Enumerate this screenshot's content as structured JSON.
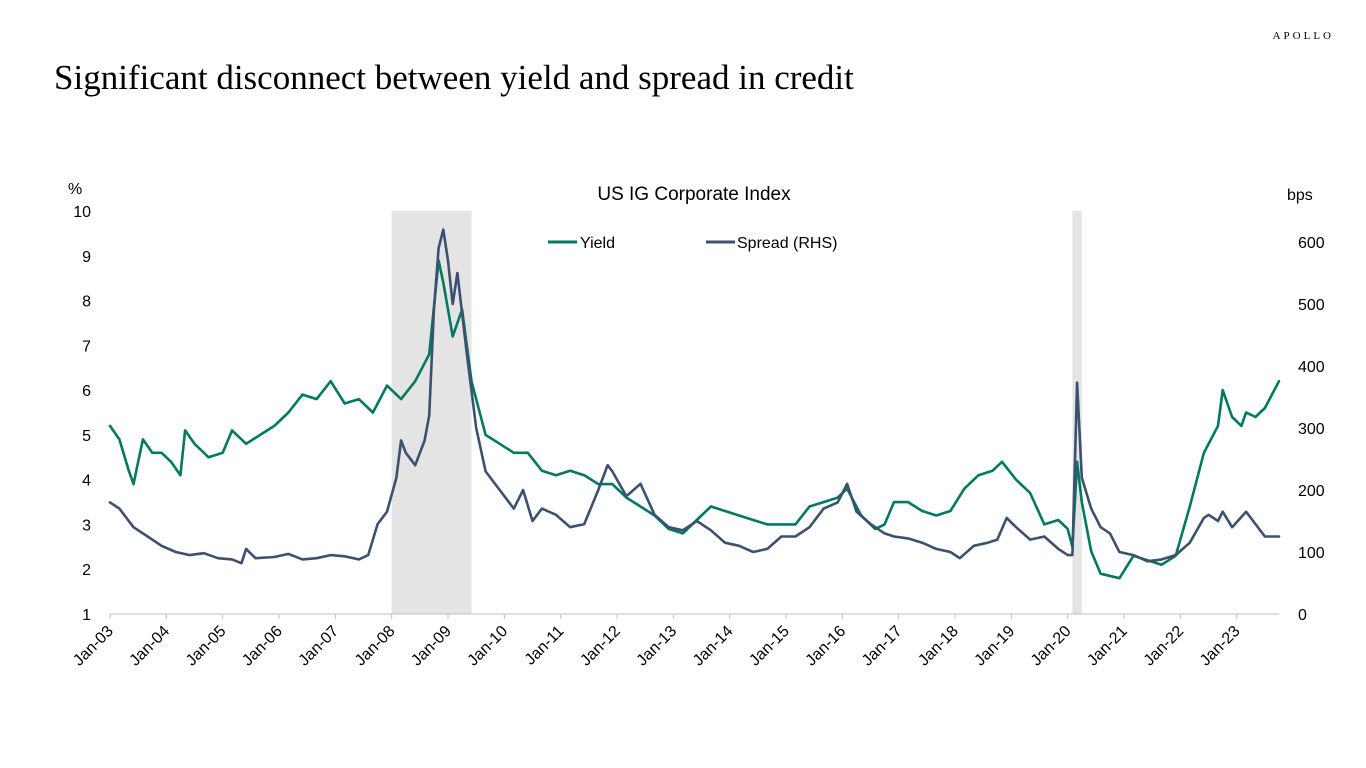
{
  "header": {
    "brand": "APOLLO",
    "headline": "Significant disconnect between yield and spread in credit"
  },
  "colors": {
    "yield": "#007A5E",
    "spread": "#3C5070",
    "recession": "#E4E4E4",
    "axis": "#BFBFBF"
  },
  "chart_data": {
    "type": "line",
    "title": "US IG Corporate Index",
    "left_axis_unit": "%",
    "right_axis_unit": "bps",
    "left_ylim": [
      1,
      10
    ],
    "left_yticks": [
      1,
      2,
      3,
      4,
      5,
      6,
      7,
      8,
      9,
      10
    ],
    "right_ylim": [
      0,
      650
    ],
    "right_yticks": [
      0,
      100,
      200,
      300,
      400,
      500,
      600
    ],
    "x_range": [
      "2003-01",
      "2023-10"
    ],
    "x_tick_labels": [
      "Jan-03",
      "Jan-04",
      "Jan-05",
      "Jan-06",
      "Jan-07",
      "Jan-08",
      "Jan-09",
      "Jan-10",
      "Jan-11",
      "Jan-12",
      "Jan-13",
      "Jan-14",
      "Jan-15",
      "Jan-16",
      "Jan-17",
      "Jan-18",
      "Jan-19",
      "Jan-20",
      "Jan-21",
      "Jan-22",
      "Jan-23"
    ],
    "recessions": [
      [
        "2008-01",
        "2009-06"
      ],
      [
        "2020-02",
        "2020-04"
      ]
    ],
    "legend_position": "top-center",
    "grid": false,
    "series": [
      {
        "name": "Yield",
        "axis": "left",
        "points": [
          [
            "2003-01",
            5.2
          ],
          [
            "2003-03",
            4.9
          ],
          [
            "2003-05",
            4.2
          ],
          [
            "2003-06",
            3.9
          ],
          [
            "2003-08",
            4.9
          ],
          [
            "2003-10",
            4.6
          ],
          [
            "2003-12",
            4.6
          ],
          [
            "2004-02",
            4.4
          ],
          [
            "2004-04",
            4.1
          ],
          [
            "2004-05",
            5.1
          ],
          [
            "2004-07",
            4.8
          ],
          [
            "2004-10",
            4.5
          ],
          [
            "2005-01",
            4.6
          ],
          [
            "2005-03",
            5.1
          ],
          [
            "2005-06",
            4.8
          ],
          [
            "2005-09",
            5.0
          ],
          [
            "2005-12",
            5.2
          ],
          [
            "2006-03",
            5.5
          ],
          [
            "2006-06",
            5.9
          ],
          [
            "2006-09",
            5.8
          ],
          [
            "2006-12",
            6.2
          ],
          [
            "2007-03",
            5.7
          ],
          [
            "2007-06",
            5.8
          ],
          [
            "2007-09",
            5.5
          ],
          [
            "2007-12",
            6.1
          ],
          [
            "2008-03",
            5.8
          ],
          [
            "2008-06",
            6.2
          ],
          [
            "2008-09",
            6.8
          ],
          [
            "2008-11",
            8.9
          ],
          [
            "2008-12",
            8.4
          ],
          [
            "2009-02",
            7.2
          ],
          [
            "2009-04",
            7.8
          ],
          [
            "2009-06",
            6.2
          ],
          [
            "2009-09",
            5.0
          ],
          [
            "2009-12",
            4.8
          ],
          [
            "2010-03",
            4.6
          ],
          [
            "2010-06",
            4.6
          ],
          [
            "2010-09",
            4.2
          ],
          [
            "2010-12",
            4.1
          ],
          [
            "2011-03",
            4.2
          ],
          [
            "2011-06",
            4.1
          ],
          [
            "2011-09",
            3.9
          ],
          [
            "2011-12",
            3.9
          ],
          [
            "2012-03",
            3.6
          ],
          [
            "2012-06",
            3.4
          ],
          [
            "2012-09",
            3.2
          ],
          [
            "2012-12",
            2.9
          ],
          [
            "2013-03",
            2.8
          ],
          [
            "2013-06",
            3.1
          ],
          [
            "2013-09",
            3.4
          ],
          [
            "2013-12",
            3.3
          ],
          [
            "2014-03",
            3.2
          ],
          [
            "2014-06",
            3.1
          ],
          [
            "2014-09",
            3.0
          ],
          [
            "2014-12",
            3.0
          ],
          [
            "2015-03",
            3.0
          ],
          [
            "2015-06",
            3.4
          ],
          [
            "2015-09",
            3.5
          ],
          [
            "2015-12",
            3.6
          ],
          [
            "2016-02",
            3.8
          ],
          [
            "2016-05",
            3.2
          ],
          [
            "2016-08",
            2.9
          ],
          [
            "2016-10",
            3.0
          ],
          [
            "2016-12",
            3.5
          ],
          [
            "2017-03",
            3.5
          ],
          [
            "2017-06",
            3.3
          ],
          [
            "2017-09",
            3.2
          ],
          [
            "2017-12",
            3.3
          ],
          [
            "2018-03",
            3.8
          ],
          [
            "2018-06",
            4.1
          ],
          [
            "2018-09",
            4.2
          ],
          [
            "2018-11",
            4.4
          ],
          [
            "2019-02",
            4.0
          ],
          [
            "2019-05",
            3.7
          ],
          [
            "2019-08",
            3.0
          ],
          [
            "2019-11",
            3.1
          ],
          [
            "2020-01",
            2.9
          ],
          [
            "2020-02",
            2.5
          ],
          [
            "2020-03",
            4.4
          ],
          [
            "2020-04",
            3.5
          ],
          [
            "2020-06",
            2.4
          ],
          [
            "2020-08",
            1.9
          ],
          [
            "2020-12",
            1.8
          ],
          [
            "2021-03",
            2.3
          ],
          [
            "2021-06",
            2.2
          ],
          [
            "2021-09",
            2.1
          ],
          [
            "2021-12",
            2.3
          ],
          [
            "2022-03",
            3.4
          ],
          [
            "2022-06",
            4.6
          ],
          [
            "2022-09",
            5.2
          ],
          [
            "2022-10",
            6.0
          ],
          [
            "2022-12",
            5.4
          ],
          [
            "2023-02",
            5.2
          ],
          [
            "2023-03",
            5.5
          ],
          [
            "2023-05",
            5.4
          ],
          [
            "2023-07",
            5.6
          ],
          [
            "2023-10",
            6.2
          ]
        ]
      },
      {
        "name": "Spread (RHS)",
        "axis": "right",
        "points": [
          [
            "2003-01",
            180
          ],
          [
            "2003-03",
            170
          ],
          [
            "2003-06",
            140
          ],
          [
            "2003-09",
            125
          ],
          [
            "2003-12",
            110
          ],
          [
            "2004-03",
            100
          ],
          [
            "2004-06",
            95
          ],
          [
            "2004-09",
            98
          ],
          [
            "2004-12",
            90
          ],
          [
            "2005-03",
            88
          ],
          [
            "2005-05",
            82
          ],
          [
            "2005-06",
            105
          ],
          [
            "2005-08",
            90
          ],
          [
            "2005-12",
            92
          ],
          [
            "2006-03",
            97
          ],
          [
            "2006-06",
            88
          ],
          [
            "2006-09",
            90
          ],
          [
            "2006-12",
            95
          ],
          [
            "2007-03",
            93
          ],
          [
            "2007-06",
            88
          ],
          [
            "2007-08",
            95
          ],
          [
            "2007-10",
            145
          ],
          [
            "2007-12",
            165
          ],
          [
            "2008-02",
            220
          ],
          [
            "2008-03",
            280
          ],
          [
            "2008-04",
            260
          ],
          [
            "2008-06",
            240
          ],
          [
            "2008-08",
            280
          ],
          [
            "2008-09",
            320
          ],
          [
            "2008-10",
            490
          ],
          [
            "2008-11",
            590
          ],
          [
            "2008-12",
            620
          ],
          [
            "2009-01",
            570
          ],
          [
            "2009-02",
            500
          ],
          [
            "2009-03",
            550
          ],
          [
            "2009-05",
            420
          ],
          [
            "2009-07",
            300
          ],
          [
            "2009-09",
            230
          ],
          [
            "2009-12",
            200
          ],
          [
            "2010-03",
            170
          ],
          [
            "2010-05",
            200
          ],
          [
            "2010-07",
            150
          ],
          [
            "2010-09",
            170
          ],
          [
            "2010-12",
            160
          ],
          [
            "2011-03",
            140
          ],
          [
            "2011-06",
            145
          ],
          [
            "2011-09",
            200
          ],
          [
            "2011-11",
            240
          ],
          [
            "2011-12",
            230
          ],
          [
            "2012-03",
            190
          ],
          [
            "2012-06",
            210
          ],
          [
            "2012-09",
            160
          ],
          [
            "2012-12",
            140
          ],
          [
            "2013-03",
            135
          ],
          [
            "2013-06",
            150
          ],
          [
            "2013-09",
            135
          ],
          [
            "2013-12",
            115
          ],
          [
            "2014-03",
            110
          ],
          [
            "2014-06",
            100
          ],
          [
            "2014-09",
            105
          ],
          [
            "2014-12",
            125
          ],
          [
            "2015-03",
            125
          ],
          [
            "2015-06",
            140
          ],
          [
            "2015-09",
            170
          ],
          [
            "2015-12",
            180
          ],
          [
            "2016-02",
            210
          ],
          [
            "2016-04",
            165
          ],
          [
            "2016-07",
            145
          ],
          [
            "2016-10",
            130
          ],
          [
            "2016-12",
            125
          ],
          [
            "2017-03",
            122
          ],
          [
            "2017-06",
            115
          ],
          [
            "2017-09",
            105
          ],
          [
            "2017-12",
            100
          ],
          [
            "2018-02",
            90
          ],
          [
            "2018-05",
            110
          ],
          [
            "2018-08",
            115
          ],
          [
            "2018-10",
            120
          ],
          [
            "2018-12",
            155
          ],
          [
            "2019-02",
            140
          ],
          [
            "2019-05",
            120
          ],
          [
            "2019-08",
            125
          ],
          [
            "2019-11",
            105
          ],
          [
            "2020-01",
            95
          ],
          [
            "2020-02",
            95
          ],
          [
            "2020-03",
            373
          ],
          [
            "2020-04",
            220
          ],
          [
            "2020-06",
            170
          ],
          [
            "2020-08",
            140
          ],
          [
            "2020-10",
            130
          ],
          [
            "2020-12",
            100
          ],
          [
            "2021-03",
            95
          ],
          [
            "2021-06",
            85
          ],
          [
            "2021-09",
            88
          ],
          [
            "2021-12",
            95
          ],
          [
            "2022-03",
            115
          ],
          [
            "2022-06",
            155
          ],
          [
            "2022-07",
            160
          ],
          [
            "2022-09",
            150
          ],
          [
            "2022-10",
            165
          ],
          [
            "2022-12",
            140
          ],
          [
            "2023-03",
            165
          ],
          [
            "2023-05",
            145
          ],
          [
            "2023-07",
            125
          ],
          [
            "2023-10",
            125
          ]
        ]
      }
    ]
  }
}
